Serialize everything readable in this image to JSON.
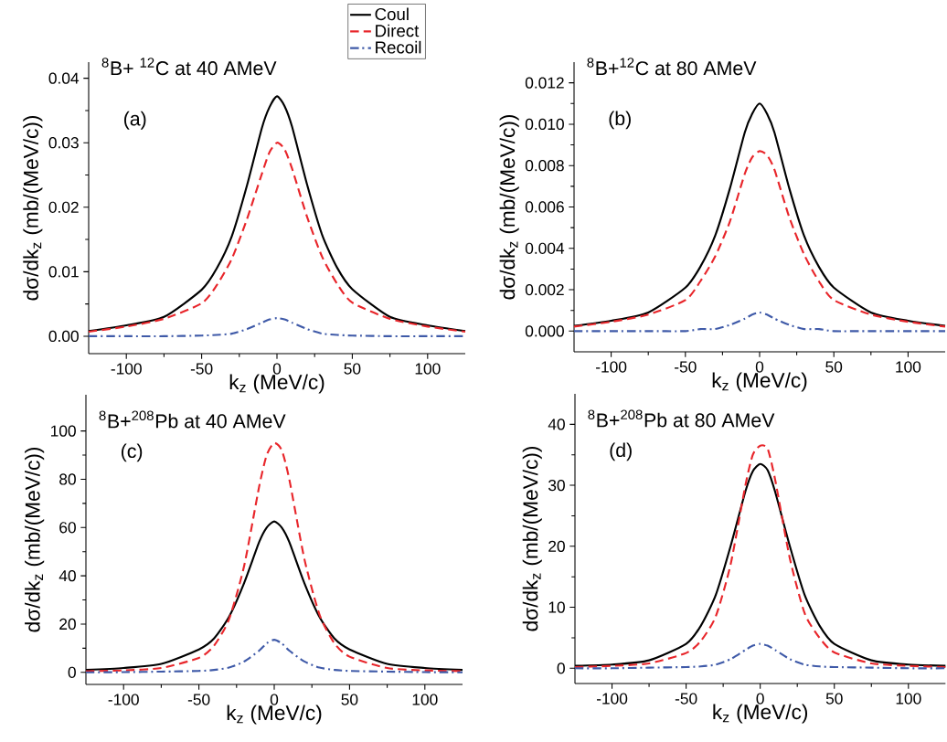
{
  "chart_data": [
    {
      "type": "line",
      "title": "$^{8}$B+ $^{12}$C at 40 AMeV",
      "xlabel": "k$_{z}$ (MeV/c)",
      "ylabel": "dσ/dk$_{z}$ (mb/(MeV/c))",
      "annotations": [
        "(a)"
      ],
      "legend": "top right",
      "x": [
        -125,
        -100,
        -75,
        -50,
        -40,
        -30,
        -20,
        -10,
        -5,
        0,
        5,
        10,
        20,
        30,
        40,
        50,
        75,
        100,
        125
      ],
      "xlim": [
        -125,
        125
      ],
      "xticks": [
        -100,
        -50,
        0,
        50,
        100
      ],
      "ylim": [
        -0.0027,
        0.0425
      ],
      "yticks": [
        {
          "value": 0,
          "label": "0.00"
        },
        {
          "value": 0.01,
          "label": "0.01"
        },
        {
          "value": 0.02,
          "label": "0.02"
        },
        {
          "value": 0.03,
          "label": "0.03"
        },
        {
          "value": 0.04,
          "label": "0.04"
        }
      ],
      "series": [
        {
          "name": "Coul",
          "color": "#000000",
          "line_style": "solid",
          "values": [
            0.0008,
            0.0017,
            0.003,
            0.0072,
            0.0105,
            0.0155,
            0.0233,
            0.0323,
            0.0355,
            0.0372,
            0.0357,
            0.0325,
            0.0235,
            0.0157,
            0.0106,
            0.0073,
            0.003,
            0.0017,
            0.0008
          ]
        },
        {
          "name": "Direct",
          "color": "#e8262b",
          "line_style": "dashed",
          "values": [
            0.0007,
            0.0015,
            0.0027,
            0.0051,
            0.0079,
            0.012,
            0.0181,
            0.0252,
            0.0285,
            0.03,
            0.029,
            0.026,
            0.0185,
            0.0123,
            0.0081,
            0.0052,
            0.0027,
            0.0015,
            0.0007
          ]
        },
        {
          "name": "Recoil",
          "color": "#3f5aa8",
          "line_style": "dashdot",
          "values": [
            0,
            0,
            0,
            0.0001,
            0.0002,
            0.0004,
            0.0011,
            0.0021,
            0.0026,
            0.0028,
            0.0026,
            0.0021,
            0.0011,
            0.0004,
            0.0002,
            0.0001,
            0,
            0,
            0
          ]
        }
      ]
    },
    {
      "type": "line",
      "title": "$^{8}$B+$^{12}$C at 80 AMeV",
      "xlabel": "k$_{z}$ (MeV/c)",
      "ylabel": "dσ/dk$_{z}$ (mb/(MeV/c))",
      "annotations": [
        "(b)"
      ],
      "x": [
        -125,
        -100,
        -75,
        -50,
        -40,
        -30,
        -20,
        -10,
        -5,
        0,
        5,
        10,
        20,
        30,
        40,
        50,
        75,
        100,
        125
      ],
      "xlim": [
        -125,
        125
      ],
      "xticks": [
        -100,
        -50,
        0,
        50,
        100
      ],
      "ylim": [
        -0.001,
        0.013
      ],
      "yticks": [
        {
          "value": 0,
          "label": "0.000"
        },
        {
          "value": 0.002,
          "label": "0.002"
        },
        {
          "value": 0.004,
          "label": "0.004"
        },
        {
          "value": 0.006,
          "label": "0.006"
        },
        {
          "value": 0.008,
          "label": "0.008"
        },
        {
          "value": 0.01,
          "label": "0.010"
        },
        {
          "value": 0.012,
          "label": "0.012"
        }
      ],
      "series": [
        {
          "color": "#000000",
          "line_style": "solid",
          "values": [
            0.00025,
            0.0005,
            0.0009,
            0.0021,
            0.0031,
            0.0046,
            0.0069,
            0.0096,
            0.0105,
            0.011,
            0.0105,
            0.0096,
            0.0069,
            0.0046,
            0.0031,
            0.0021,
            0.0009,
            0.0005,
            0.00025
          ]
        },
        {
          "color": "#e8262b",
          "line_style": "dashed",
          "values": [
            0.00022,
            0.00045,
            0.0008,
            0.0015,
            0.0024,
            0.0036,
            0.0053,
            0.0076,
            0.0084,
            0.0087,
            0.0085,
            0.0078,
            0.0055,
            0.0037,
            0.0024,
            0.0015,
            0.0008,
            0.00045,
            0.00022
          ]
        },
        {
          "color": "#3f5aa8",
          "line_style": "dashdot",
          "values": [
            0,
            0,
            0,
            0,
            0.0001,
            0.0001,
            0.0003,
            0.0006,
            0.0008,
            0.0009,
            0.0008,
            0.0006,
            0.0003,
            0.0001,
            0.0001,
            0,
            0,
            0,
            0
          ]
        }
      ]
    },
    {
      "type": "line",
      "title": "$^{8}$B+$^{208}$Pb at 40 AMeV",
      "xlabel": "k$_{z}$ (MeV/c)",
      "ylabel": "dσ/dk$_{z}$ (mb/(MeV/c))",
      "annotations": [
        "(c)"
      ],
      "x": [
        -125,
        -100,
        -75,
        -50,
        -40,
        -30,
        -20,
        -10,
        -5,
        0,
        5,
        10,
        20,
        30,
        40,
        50,
        75,
        100,
        125
      ],
      "xlim": [
        -125,
        125
      ],
      "xticks": [
        -100,
        -50,
        0,
        50,
        100
      ],
      "ylim": [
        -5,
        115
      ],
      "yticks": [
        0,
        20,
        40,
        60,
        80,
        100
      ],
      "series": [
        {
          "color": "#000000",
          "line_style": "solid",
          "values": [
            1.0,
            1.8,
            3.5,
            9.5,
            14,
            23,
            37,
            54,
            60,
            62.5,
            60,
            54,
            37,
            23,
            14,
            9.5,
            3.5,
            1.8,
            1.0
          ]
        },
        {
          "color": "#e8262b",
          "line_style": "dashed",
          "values": [
            0.5,
            0.8,
            1.8,
            6,
            11,
            22,
            44,
            77,
            90,
            95,
            92,
            80,
            47,
            24,
            12,
            6.5,
            1.8,
            0.8,
            0.5
          ]
        },
        {
          "color": "#3f5aa8",
          "line_style": "dashdot",
          "values": [
            0,
            0.1,
            0.3,
            0.6,
            1,
            2,
            4.5,
            9,
            12,
            13.5,
            12,
            9,
            4.5,
            2,
            1,
            0.6,
            0.3,
            0.1,
            0
          ]
        }
      ]
    },
    {
      "type": "line",
      "title": "$^{8}$B+$^{208}$Pb at 80 AMeV",
      "xlabel": "k$_{z}$ (MeV/c)",
      "ylabel": "dσ/dk$_{z}$ (mb/(MeV/c))",
      "annotations": [
        "(d)"
      ],
      "x": [
        -125,
        -100,
        -75,
        -50,
        -40,
        -30,
        -20,
        -10,
        -5,
        0,
        5,
        10,
        20,
        30,
        40,
        50,
        75,
        100,
        125
      ],
      "xlim": [
        -125,
        125
      ],
      "xticks": [
        -100,
        -50,
        0,
        50,
        100
      ],
      "ylim": [
        -2.5,
        45
      ],
      "yticks": [
        0,
        10,
        20,
        30,
        40
      ],
      "series": [
        {
          "color": "#000000",
          "line_style": "solid",
          "values": [
            0.4,
            0.6,
            1.3,
            4,
            7,
            12,
            20,
            29,
            32.3,
            33.5,
            32.5,
            29,
            20,
            12,
            7,
            4,
            1.3,
            0.6,
            0.4
          ]
        },
        {
          "color": "#e8262b",
          "line_style": "dashed",
          "values": [
            0.2,
            0.4,
            0.8,
            2.5,
            4.5,
            8.5,
            17,
            30,
            35,
            36.5,
            36,
            31,
            18,
            9,
            5,
            2.6,
            0.8,
            0.4,
            0.2
          ]
        },
        {
          "color": "#3f5aa8",
          "line_style": "dashdot",
          "values": [
            0,
            0,
            0.1,
            0.2,
            0.3,
            0.6,
            1.5,
            3,
            3.7,
            4.0,
            3.7,
            3,
            1.5,
            0.6,
            0.3,
            0.2,
            0.1,
            0,
            0
          ]
        }
      ]
    }
  ]
}
